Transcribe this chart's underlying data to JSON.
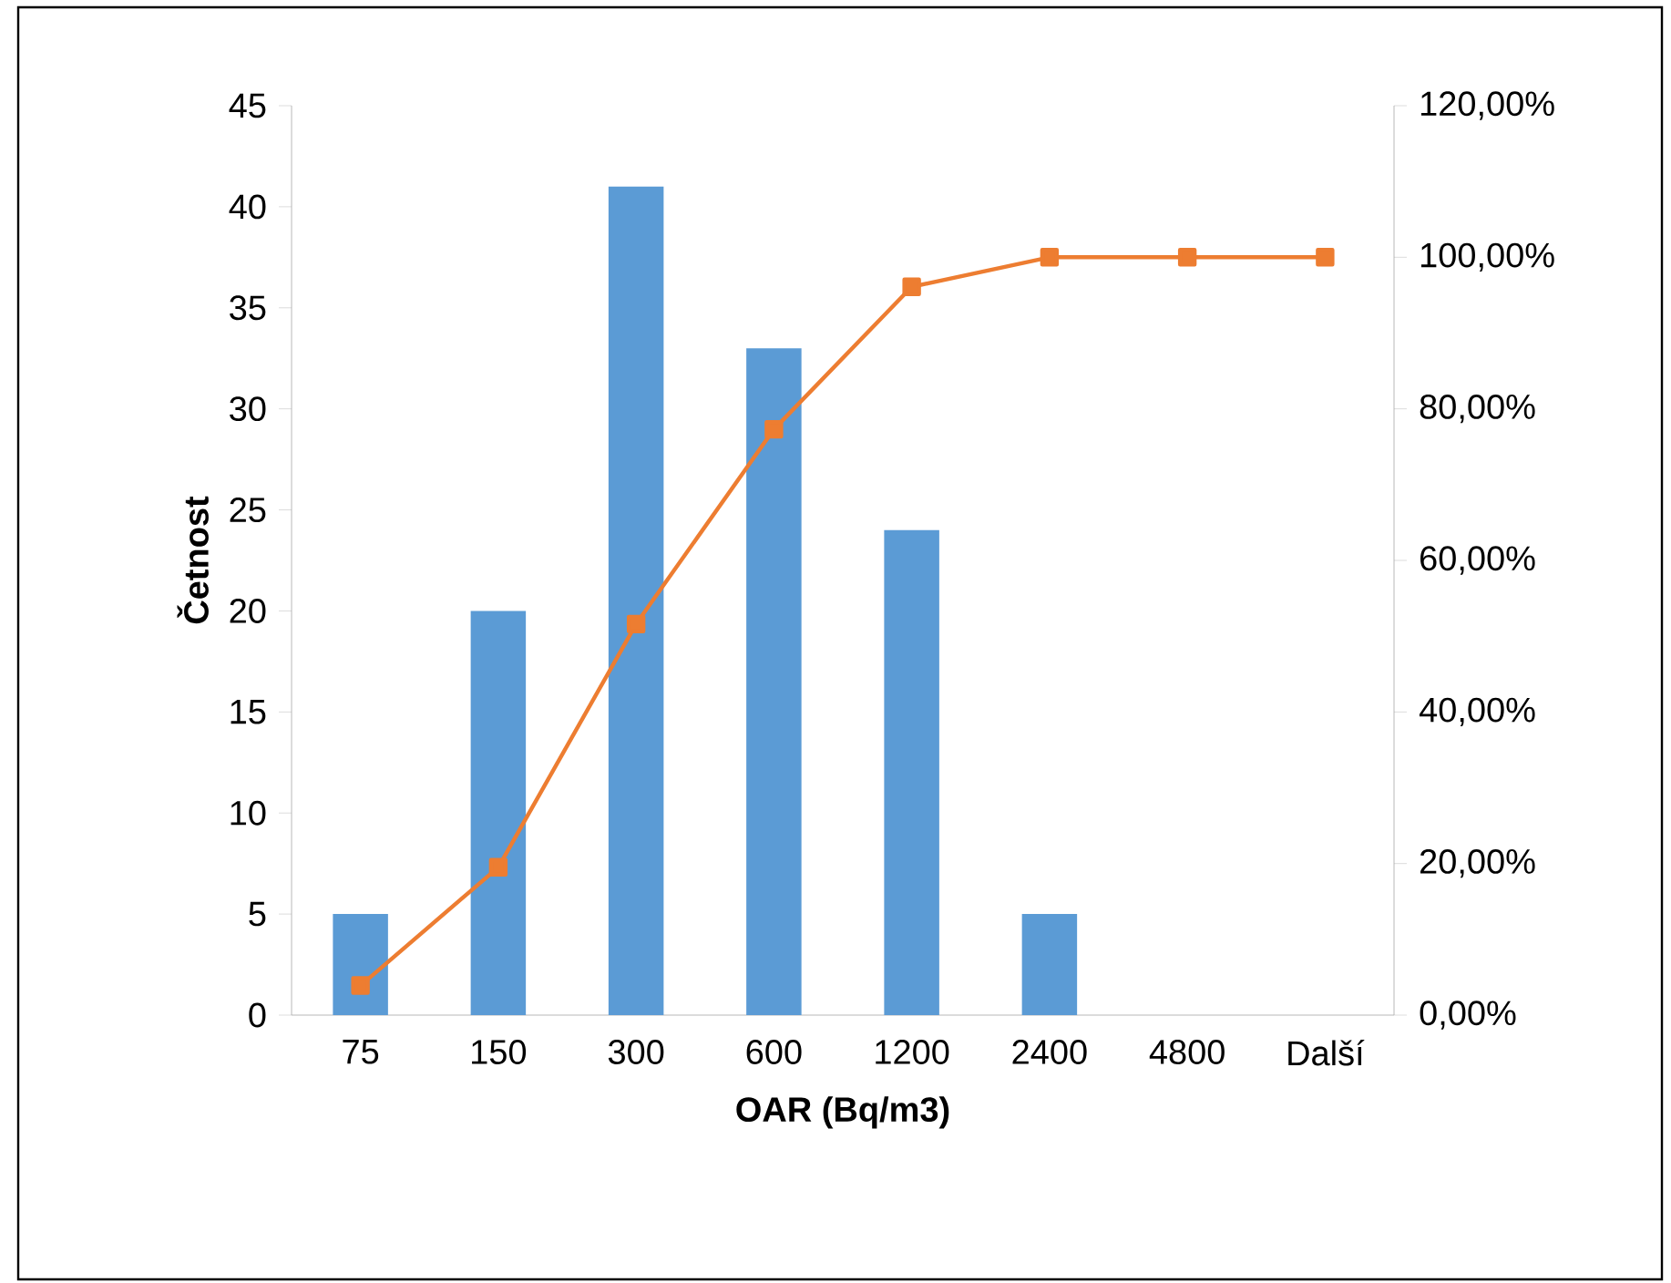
{
  "chart_data": {
    "type": "bar",
    "xlabel": "OAR (Bq/m3)",
    "ylabel": "Četnost",
    "categories": [
      "75",
      "150",
      "300",
      "600",
      "1200",
      "2400",
      "4800",
      "Další"
    ],
    "series": [
      {
        "color": "#5b9bd5",
        "values": [
          5,
          20,
          41,
          33,
          24,
          5,
          0,
          0
        ]
      },
      {
        "type": "line",
        "color": "#ed7d31",
        "axis": "y2",
        "marker": "square",
        "values": [
          3.9,
          19.5,
          51.6,
          77.3,
          96.1,
          100,
          100,
          100
        ]
      }
    ],
    "ylim": [
      0,
      45
    ],
    "yticks": [
      0,
      5,
      10,
      15,
      20,
      25,
      30,
      35,
      40,
      45
    ],
    "y2lim": [
      0,
      120
    ],
    "y2ticks": [
      {
        "value": 0,
        "label": "0,00%"
      },
      {
        "value": 20,
        "label": "20,00%"
      },
      {
        "value": 40,
        "label": "40,00%"
      },
      {
        "value": 60,
        "label": "60,00%"
      },
      {
        "value": 80,
        "label": "80,00%"
      },
      {
        "value": 100,
        "label": "100,00%"
      },
      {
        "value": 120,
        "label": "120,00%"
      }
    ]
  }
}
